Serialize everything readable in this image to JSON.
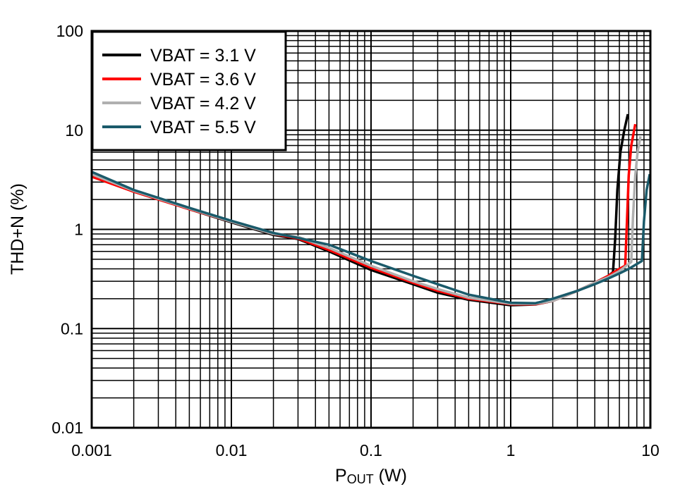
{
  "chart_data": {
    "type": "line",
    "xlabel": "P",
    "xlabel_sub": "OUT",
    "xlabel_unit": " (W)",
    "ylabel": "THD+N (%)",
    "xscale": "log",
    "yscale": "log",
    "xlim": [
      0.001,
      10
    ],
    "ylim": [
      0.01,
      100
    ],
    "grid": true,
    "legend_position": "top-left",
    "x_ticks": [
      "0.001",
      "0.01",
      "0.1",
      "1",
      "10"
    ],
    "y_ticks": [
      "0.01",
      "0.1",
      "1",
      "10",
      "100"
    ],
    "series": [
      {
        "name": "VBAT = 3.1 V",
        "color": "#000000",
        "points": [
          [
            0.001,
            3.5
          ],
          [
            0.002,
            2.4
          ],
          [
            0.005,
            1.6
          ],
          [
            0.01,
            1.18
          ],
          [
            0.02,
            0.88
          ],
          [
            0.03,
            0.8
          ],
          [
            0.05,
            0.6
          ],
          [
            0.1,
            0.39
          ],
          [
            0.2,
            0.28
          ],
          [
            0.3,
            0.23
          ],
          [
            0.5,
            0.195
          ],
          [
            1,
            0.172
          ],
          [
            1.5,
            0.175
          ],
          [
            2,
            0.19
          ],
          [
            3,
            0.24
          ],
          [
            4,
            0.29
          ],
          [
            5,
            0.34
          ],
          [
            5.4,
            0.37
          ],
          [
            5.6,
            0.8
          ],
          [
            5.8,
            2.5
          ],
          [
            6.1,
            6
          ],
          [
            6.5,
            10
          ],
          [
            6.9,
            14.5
          ]
        ]
      },
      {
        "name": "VBAT = 3.6 V",
        "color": "#ff0000",
        "points": [
          [
            0.001,
            3.4
          ],
          [
            0.002,
            2.4
          ],
          [
            0.005,
            1.6
          ],
          [
            0.01,
            1.2
          ],
          [
            0.02,
            0.9
          ],
          [
            0.03,
            0.81
          ],
          [
            0.05,
            0.62
          ],
          [
            0.1,
            0.41
          ],
          [
            0.2,
            0.29
          ],
          [
            0.3,
            0.24
          ],
          [
            0.5,
            0.2
          ],
          [
            1,
            0.176
          ],
          [
            1.5,
            0.176
          ],
          [
            2,
            0.19
          ],
          [
            3,
            0.24
          ],
          [
            4,
            0.29
          ],
          [
            5,
            0.34
          ],
          [
            6,
            0.4
          ],
          [
            6.6,
            0.43
          ],
          [
            6.8,
            1.2
          ],
          [
            7,
            3.5
          ],
          [
            7.3,
            7
          ],
          [
            7.8,
            11.5
          ]
        ]
      },
      {
        "name": "VBAT = 4.2 V",
        "color": "#b0b0b0",
        "points": [
          [
            0.001,
            3.6
          ],
          [
            0.002,
            2.45
          ],
          [
            0.005,
            1.62
          ],
          [
            0.01,
            1.2
          ],
          [
            0.02,
            0.9
          ],
          [
            0.03,
            0.84
          ],
          [
            0.05,
            0.65
          ],
          [
            0.1,
            0.43
          ],
          [
            0.2,
            0.3
          ],
          [
            0.3,
            0.25
          ],
          [
            0.5,
            0.205
          ],
          [
            1,
            0.178
          ],
          [
            1.5,
            0.178
          ],
          [
            2,
            0.19
          ],
          [
            3,
            0.24
          ],
          [
            4,
            0.29
          ],
          [
            5,
            0.33
          ],
          [
            6,
            0.38
          ],
          [
            7.3,
            0.47
          ],
          [
            7.5,
            1.3
          ],
          [
            7.8,
            3.5
          ],
          [
            8.1,
            6
          ],
          [
            8.5,
            8.7
          ]
        ]
      },
      {
        "name": "VBAT = 5.5 V",
        "color": "#1a5a6a",
        "points": [
          [
            0.001,
            3.8
          ],
          [
            0.002,
            2.5
          ],
          [
            0.005,
            1.65
          ],
          [
            0.01,
            1.22
          ],
          [
            0.02,
            0.92
          ],
          [
            0.03,
            0.82
          ],
          [
            0.05,
            0.7
          ],
          [
            0.1,
            0.48
          ],
          [
            0.2,
            0.34
          ],
          [
            0.3,
            0.28
          ],
          [
            0.5,
            0.22
          ],
          [
            1,
            0.182
          ],
          [
            1.5,
            0.18
          ],
          [
            2,
            0.2
          ],
          [
            3,
            0.24
          ],
          [
            4,
            0.28
          ],
          [
            5,
            0.32
          ],
          [
            6,
            0.36
          ],
          [
            7,
            0.4
          ],
          [
            8.7,
            0.48
          ],
          [
            9.0,
            1.2
          ],
          [
            9.4,
            2.5
          ],
          [
            9.9,
            3.6
          ]
        ]
      }
    ]
  }
}
